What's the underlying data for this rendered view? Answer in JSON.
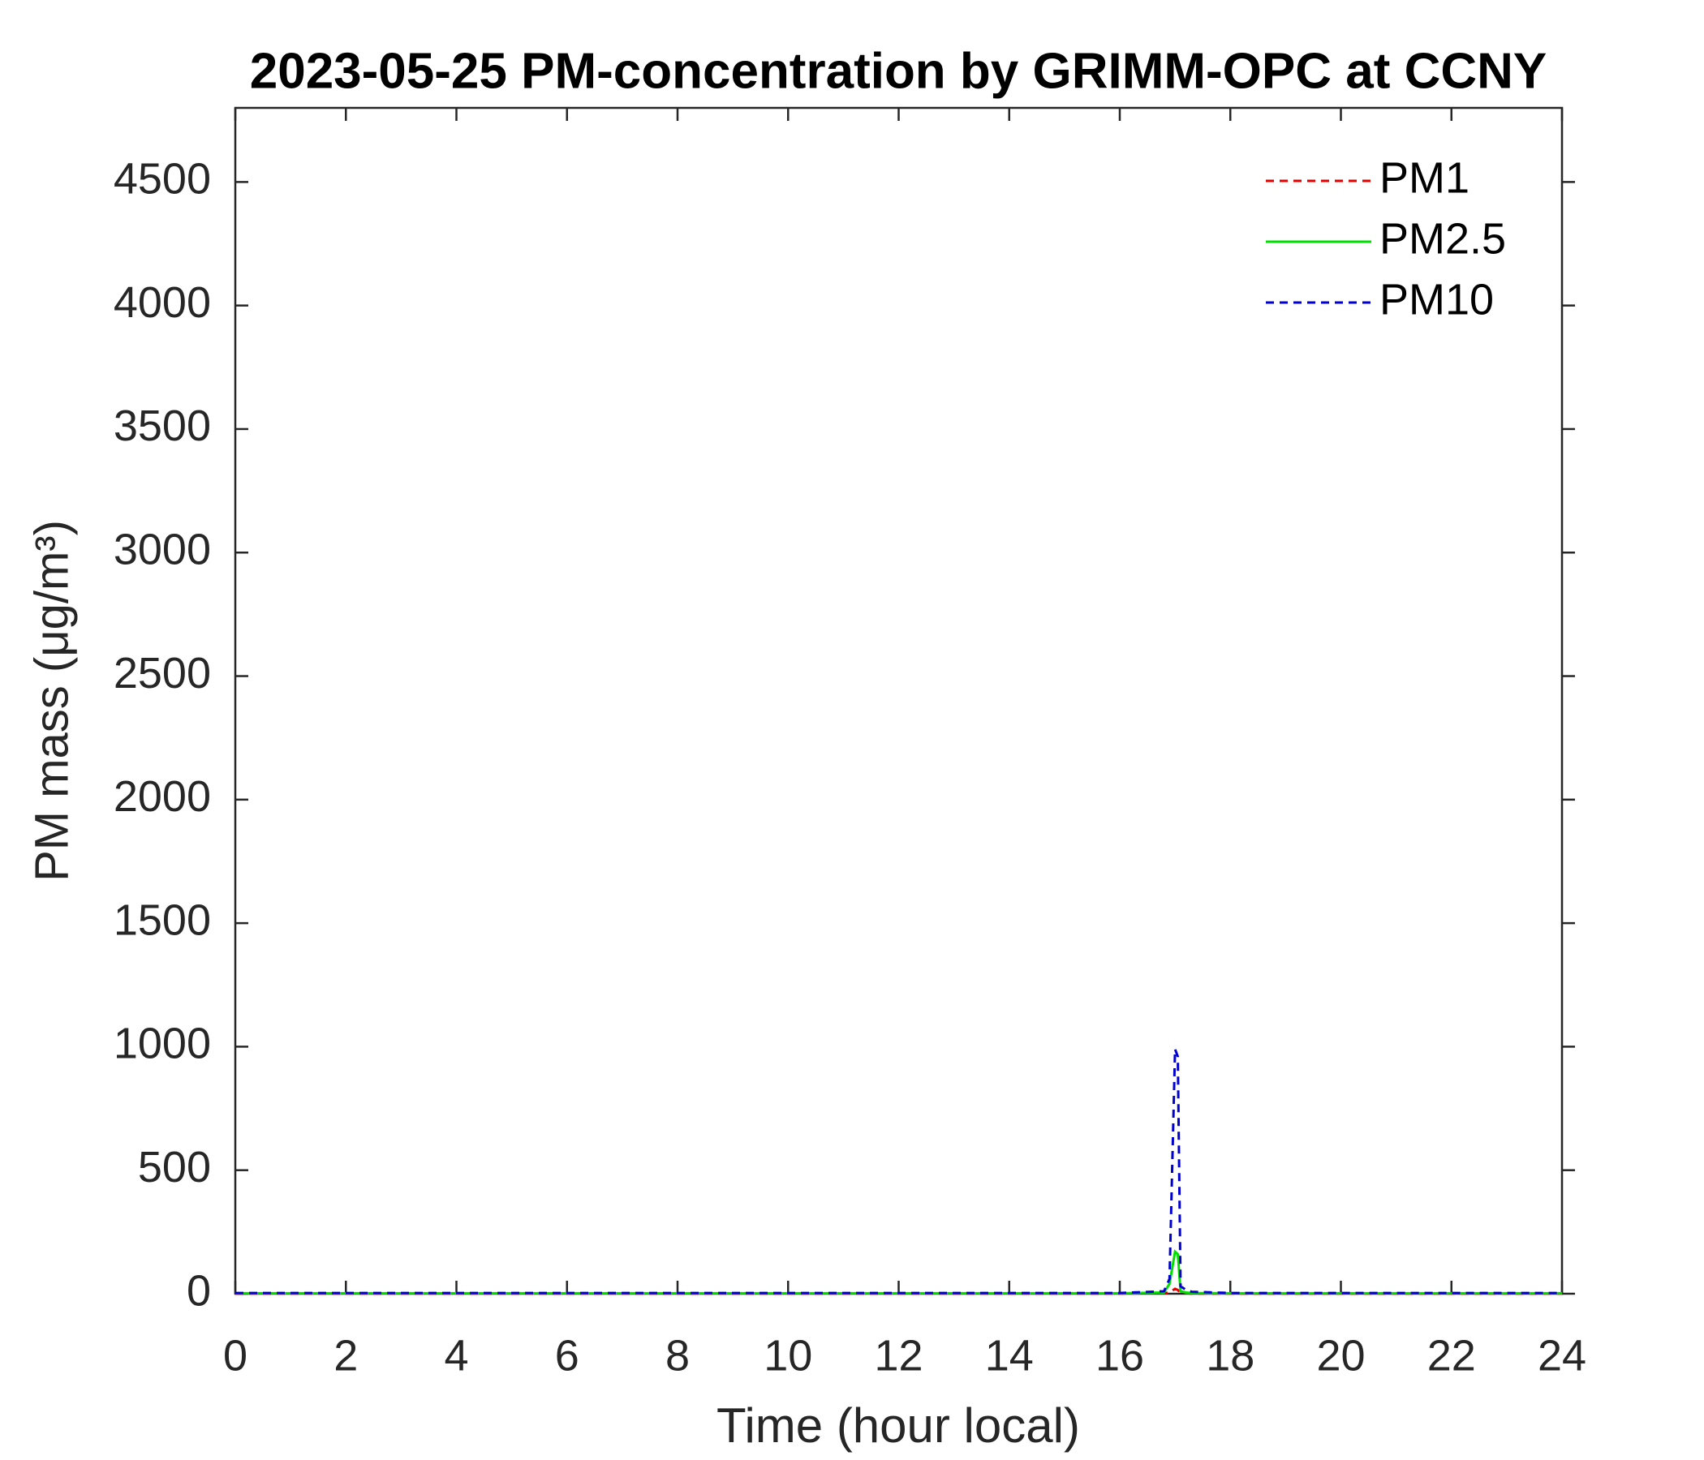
{
  "chart_data": {
    "type": "line",
    "title": "2023-05-25 PM-concentration by GRIMM-OPC at CCNY",
    "x_label": "Time (hour local)",
    "y_label": "PM mass (μg/m³)",
    "x": [
      0,
      1,
      2,
      3,
      4,
      5,
      6,
      7,
      8,
      9,
      10,
      11,
      12,
      13,
      14,
      15,
      16,
      16.8,
      16.9,
      17,
      17.05,
      17.1,
      17.2,
      17.3,
      18,
      19,
      20,
      21,
      22,
      23,
      24
    ],
    "series": [
      {
        "name": "PM1",
        "color": "#e00000",
        "dash": true,
        "values": [
          1,
          1,
          1,
          1,
          1,
          1,
          1,
          1,
          1,
          1,
          1,
          1,
          1,
          1,
          1,
          1,
          1,
          2,
          5,
          20,
          15,
          3,
          2,
          1,
          1,
          1,
          1,
          1,
          1,
          1,
          1
        ]
      },
      {
        "name": "PM2.5",
        "color": "#00e000",
        "dash": false,
        "values": [
          2,
          2,
          2,
          2,
          2,
          2,
          2,
          2,
          2,
          2,
          2,
          2,
          2,
          2,
          2,
          2,
          2,
          5,
          40,
          170,
          160,
          10,
          5,
          3,
          2,
          2,
          2,
          2,
          2,
          2,
          2
        ]
      },
      {
        "name": "PM10",
        "color": "#0000d0",
        "dash": true,
        "values": [
          3,
          3,
          3,
          3,
          3,
          3,
          3,
          3,
          3,
          3,
          3,
          3,
          3,
          3,
          3,
          3,
          3,
          10,
          60,
          990,
          960,
          30,
          15,
          8,
          3,
          3,
          3,
          3,
          3,
          3,
          3
        ]
      }
    ],
    "xlim": [
      0,
      24
    ],
    "xticks": [
      0,
      2,
      4,
      6,
      8,
      10,
      12,
      14,
      16,
      18,
      20,
      22,
      24
    ],
    "ylim": [
      0,
      4800
    ],
    "yticks": [
      0,
      500,
      1000,
      1500,
      2000,
      2500,
      3000,
      3500,
      4000,
      4500
    ],
    "grid": false,
    "legend": "upper right"
  }
}
